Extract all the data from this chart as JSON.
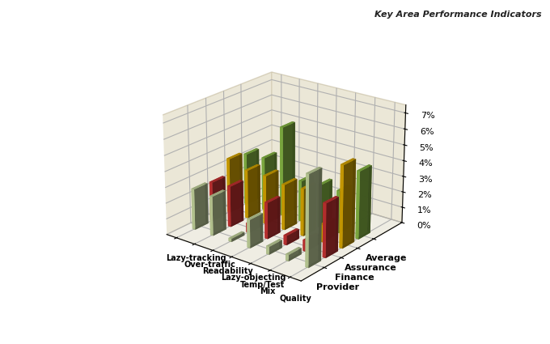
{
  "title": "Key Area Performance Indicators",
  "categories": [
    "Lazy-tracking",
    "Over-traffic",
    "Readability",
    "Lazy-objecting",
    "Temp/Test",
    "Mix",
    "Quality"
  ],
  "series_labels": [
    "Average",
    "Assurance",
    "Finance",
    "Provider"
  ],
  "series_colors": [
    "#c8d9a0",
    "#cc3333",
    "#ddaa00",
    "#88bb44"
  ],
  "data": {
    "Average": [
      0.026,
      0.025,
      0.002,
      0.018,
      0.005,
      0.004,
      0.057
    ],
    "Assurance": [
      0.025,
      0.026,
      0.006,
      0.023,
      0.006,
      0.007,
      0.034
    ],
    "Finance": [
      0.035,
      0.031,
      0.031,
      0.029,
      0.03,
      0.011,
      0.052
    ],
    "Provider": [
      0.033,
      0.034,
      0.057,
      0.026,
      0.027,
      0.027,
      0.043
    ]
  },
  "yticks": [
    0.0,
    0.01,
    0.02,
    0.03,
    0.04,
    0.05,
    0.06,
    0.07
  ],
  "yticklabels": [
    "0%",
    "1%",
    "2%",
    "3%",
    "4%",
    "5%",
    "6%",
    "7%"
  ],
  "pane_color_back": "#d8d0b0",
  "pane_color_side": "#d8d0b0",
  "pane_color_bottom": "#e0dcc8",
  "title_fontsize": 8,
  "label_fontsize": 8
}
